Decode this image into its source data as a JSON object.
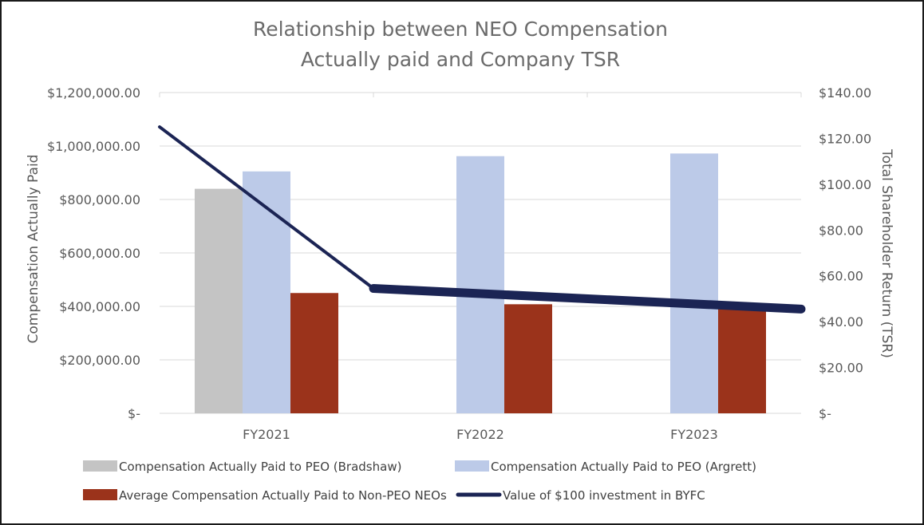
{
  "chart_data": {
    "type": "bar",
    "title": "Relationship between NEO Compensation",
    "subtitle": "Actually paid and Company TSR",
    "categories": [
      "FY2021",
      "FY2022",
      "FY2023"
    ],
    "ylabel": "Compensation Actually Paid",
    "y2label": "Total Shareholder Return (TSR)",
    "ylim": [
      0,
      1200000
    ],
    "y2lim": [
      0,
      140
    ],
    "y_ticks": [
      "$-",
      "$200,000.00",
      "$400,000.00",
      "$600,000.00",
      "$800,000.00",
      "$1,000,000.00",
      "$1,200,000.00"
    ],
    "y2_ticks": [
      "$-",
      "$20.00",
      "$40.00",
      "$60.00",
      "$80.00",
      "$100.00",
      "$120.00",
      "$140.00"
    ],
    "grid": true,
    "series": [
      {
        "name": "Compensation Actually Paid to PEO (Bradshaw)",
        "type": "bar",
        "axis": "left",
        "color": "#c4c4c4",
        "values": [
          840000,
          null,
          null
        ]
      },
      {
        "name": "Compensation Actually Paid to PEO (Argrett)",
        "type": "bar",
        "axis": "left",
        "color": "#bccae8",
        "values": [
          905000,
          962000,
          972000
        ]
      },
      {
        "name": "Average Compensation Actually Paid to Non-PEO NEOs",
        "type": "bar",
        "axis": "left",
        "color": "#9b331b",
        "values": [
          450000,
          408000,
          395000
        ]
      },
      {
        "name": "Value of $100 investment in BYFC",
        "type": "line",
        "axis": "right",
        "color": "#1b2454",
        "values": [
          125.0,
          54.5,
          45.5
        ]
      }
    ],
    "legend": "bottom"
  }
}
